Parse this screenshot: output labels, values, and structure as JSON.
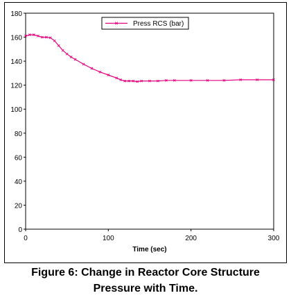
{
  "chart_data": {
    "type": "line",
    "xlabel": "Time (sec)",
    "ylabel": "",
    "xlim": [
      0,
      300
    ],
    "ylim": [
      0,
      180
    ],
    "x_ticks": [
      0,
      100,
      200,
      300
    ],
    "y_ticks": [
      0,
      20,
      40,
      60,
      80,
      100,
      120,
      140,
      160,
      180
    ],
    "grid": "horizontal",
    "legend_position": "top-center",
    "series": [
      {
        "name": "Press RCS (bar)",
        "color": "#e6007e",
        "marker": "x",
        "x": [
          0,
          5,
          10,
          15,
          20,
          25,
          30,
          35,
          40,
          45,
          50,
          55,
          60,
          70,
          80,
          90,
          100,
          110,
          115,
          120,
          125,
          130,
          135,
          140,
          150,
          160,
          170,
          180,
          200,
          220,
          240,
          260,
          280,
          300
        ],
        "y": [
          161,
          162,
          162,
          161,
          160,
          160,
          159.5,
          157,
          153,
          149,
          146,
          143.5,
          141.5,
          137.5,
          134,
          131,
          128.5,
          126,
          124.5,
          123.5,
          123.5,
          123.5,
          123,
          123.5,
          123.5,
          123.5,
          124,
          124,
          124,
          124,
          124,
          124.5,
          124.5,
          124.5
        ]
      }
    ]
  },
  "caption": {
    "line1": "Figure 6: Change in Reactor Core Structure",
    "line2": "Pressure with Time."
  }
}
